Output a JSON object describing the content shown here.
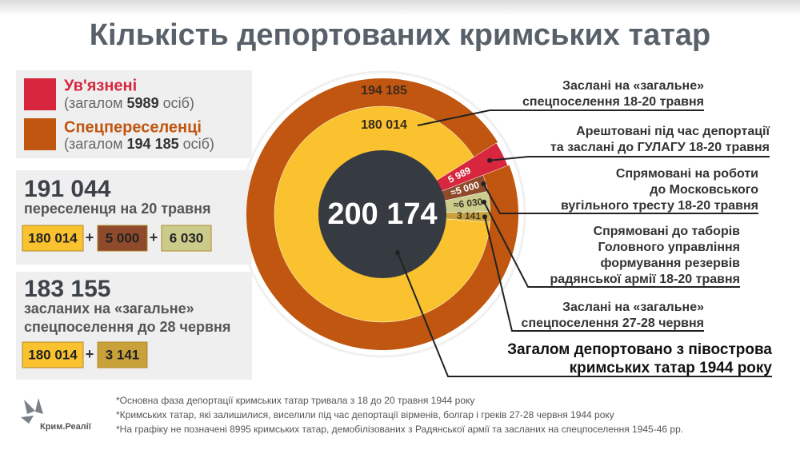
{
  "title": "Кількість депортованих кримських татар",
  "legend": [
    {
      "name": "Ув'язнені",
      "note": [
        "(загалом ",
        "5989",
        " осіб)"
      ],
      "color": "#d7263d"
    },
    {
      "name": "Спецпереселенці",
      "note": [
        "(загалом ",
        "194 185",
        " осіб)"
      ],
      "color": "#c0560f"
    }
  ],
  "operator": "+",
  "summaries": [
    {
      "total": "191 044",
      "caption": [
        "переселенця на 20 травня"
      ],
      "terms": [
        "180 014",
        "5 000",
        "6 030"
      ]
    },
    {
      "total": "183 155",
      "caption": [
        "засланих на «загальне»",
        "спецпоселення до 28 червня"
      ],
      "terms": [
        "180 014",
        "3 141"
      ]
    }
  ],
  "chart_data": {
    "type": "donut",
    "total_label": "200 174",
    "outer": {
      "value": 194185,
      "value_label": "194 185",
      "color": "#c0560f"
    },
    "slices": [
      {
        "name": [
          "Арештовані під час депортації",
          "та заслані до ГУЛАГУ 18-20 травня"
        ],
        "value": 5989,
        "value_label": "5 989",
        "color": "#d7263d"
      },
      {
        "name": [
          "Спрямовані на роботи",
          "до Московського",
          "вугільного тресту 18-20 травня"
        ],
        "value": 5000,
        "value_label": "≈5 000",
        "color": "#8e4a2a"
      },
      {
        "name": [
          "Спрямовані до таборів",
          "Головного управління",
          "формування резервів",
          "радянської армії 18-20 травня"
        ],
        "value": 6030,
        "value_label": "≈6 030",
        "color": "#cbcb8c"
      },
      {
        "name": [
          "Заслані на «загальне»",
          "спецпоселення 27-28 червня"
        ],
        "value": 3141,
        "value_label": "3 141",
        "color": "#c9a13a"
      },
      {
        "name": [
          "Заслані на «загальне»",
          "спецпоселення 18-20 травня"
        ],
        "value": 180014,
        "value_label": "180 014",
        "color": "#f9c22e"
      }
    ],
    "total_note": [
      "Загалом депортовано з півострова",
      "кримських татар 1944 року"
    ]
  },
  "footnotes": [
    "*Основна фаза депортації кримських татар тривала з 18 до 20 травня 1944 року",
    "*Кримських татар, які залишилися, виселили під час депортації вірменів, болгар і греків 27-28 червня 1944 року",
    "*На графіку не позначені 8995 кримських татар, демобілізованих з Радянської армії та засланих на спецпоселення 1945-46 рр."
  ],
  "logo": "Крим.Реалії"
}
